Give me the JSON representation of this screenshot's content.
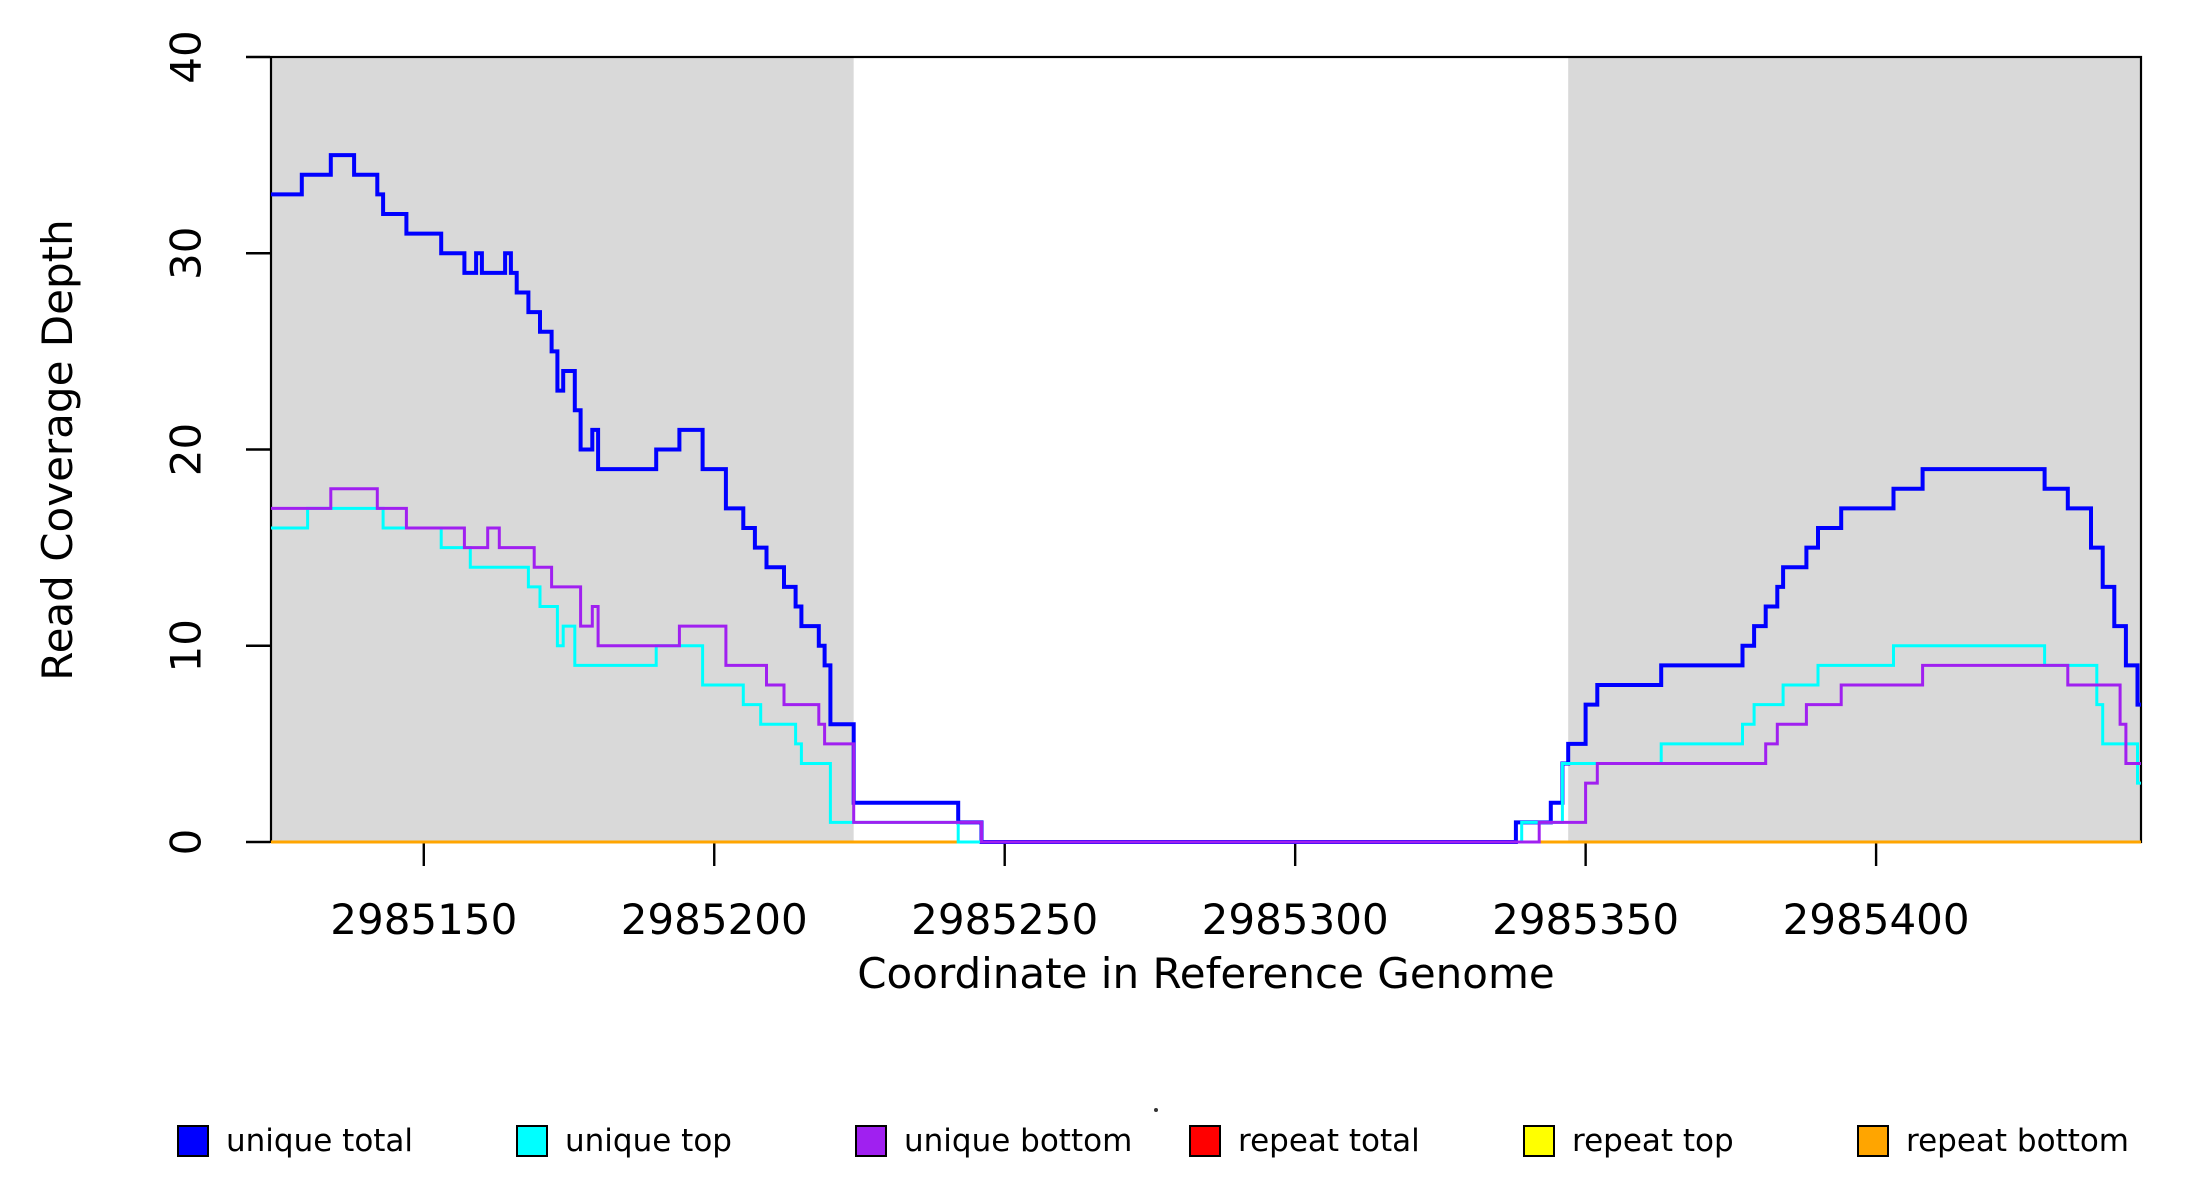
{
  "figure": {
    "background": "#FFFFFF",
    "text_color": "#000000"
  },
  "chart_data": {
    "type": "line",
    "subtype": "step-coverage-plot",
    "title": "",
    "xlabel": "Coordinate in Reference Genome",
    "ylabel": "Read Coverage Depth",
    "xlim": [
      2985123.7,
      2985445.6
    ],
    "ylim": [
      0,
      40
    ],
    "grid": false,
    "x_ticks": [
      {
        "value": 2985150,
        "label": "2985150"
      },
      {
        "value": 2985200,
        "label": "2985200"
      },
      {
        "value": 2985250,
        "label": "2985250"
      },
      {
        "value": 2985300,
        "label": "2985300"
      },
      {
        "value": 2985350,
        "label": "2985350"
      },
      {
        "value": 2985400,
        "label": "2985400"
      }
    ],
    "y_ticks": [
      {
        "value": 0,
        "label": "0"
      },
      {
        "value": 10,
        "label": "10"
      },
      {
        "value": 20,
        "label": "20"
      },
      {
        "value": 30,
        "label": "30"
      },
      {
        "value": 40,
        "label": "40"
      }
    ],
    "shaded_regions": [
      {
        "x0": 2985123.7,
        "x1": 2985224,
        "color": "#D9D9D9"
      },
      {
        "x0": 2985347,
        "x1": 2985445.6,
        "color": "#D9D9D9"
      }
    ],
    "series": [
      {
        "name": "repeat total",
        "color": "#FF0000",
        "width": 2,
        "points": [
          [
            2985123.7,
            0
          ]
        ]
      },
      {
        "name": "repeat top",
        "color": "#FFFF00",
        "width": 2,
        "points": [
          [
            2985123.7,
            0
          ]
        ]
      },
      {
        "name": "repeat bottom",
        "color": "#FFA500",
        "width": 3,
        "points": [
          [
            2985123.7,
            0
          ]
        ]
      },
      {
        "name": "unique total",
        "color": "#0000FF",
        "width": 4,
        "points": [
          [
            2985123.7,
            33
          ],
          [
            2985129,
            34
          ],
          [
            2985134,
            35
          ],
          [
            2985138,
            34
          ],
          [
            2985142,
            33
          ],
          [
            2985143,
            32
          ],
          [
            2985147,
            31
          ],
          [
            2985153,
            30
          ],
          [
            2985157,
            29
          ],
          [
            2985159,
            30
          ],
          [
            2985160,
            29
          ],
          [
            2985164,
            30
          ],
          [
            2985165,
            29
          ],
          [
            2985166,
            28
          ],
          [
            2985168,
            27
          ],
          [
            2985170,
            26
          ],
          [
            2985172,
            25
          ],
          [
            2985173,
            23
          ],
          [
            2985174,
            24
          ],
          [
            2985176,
            22
          ],
          [
            2985177,
            20
          ],
          [
            2985179,
            21
          ],
          [
            2985180,
            19
          ],
          [
            2985190,
            20
          ],
          [
            2985194,
            21
          ],
          [
            2985198,
            19
          ],
          [
            2985202,
            17
          ],
          [
            2985205,
            16
          ],
          [
            2985207,
            15
          ],
          [
            2985209,
            14
          ],
          [
            2985212,
            13
          ],
          [
            2985214,
            12
          ],
          [
            2985215,
            11
          ],
          [
            2985218,
            10
          ],
          [
            2985219,
            9
          ],
          [
            2985220,
            6
          ],
          [
            2985224,
            2
          ],
          [
            2985242,
            1
          ],
          [
            2985246,
            0
          ],
          [
            2985338,
            1
          ],
          [
            2985344,
            2
          ],
          [
            2985346,
            4
          ],
          [
            2985347,
            5
          ],
          [
            2985350,
            7
          ],
          [
            2985352,
            8
          ],
          [
            2985363,
            9
          ],
          [
            2985377,
            10
          ],
          [
            2985379,
            11
          ],
          [
            2985381,
            12
          ],
          [
            2985383,
            13
          ],
          [
            2985384,
            14
          ],
          [
            2985388,
            15
          ],
          [
            2985390,
            16
          ],
          [
            2985394,
            17
          ],
          [
            2985403,
            18
          ],
          [
            2985408,
            19
          ],
          [
            2985429,
            18
          ],
          [
            2985433,
            17
          ],
          [
            2985437,
            15
          ],
          [
            2985439,
            13
          ],
          [
            2985441,
            11
          ],
          [
            2985443,
            9
          ],
          [
            2985445,
            7
          ]
        ]
      },
      {
        "name": "unique top",
        "color": "#00FFFF",
        "width": 3,
        "points": [
          [
            2985123.7,
            16
          ],
          [
            2985130,
            17
          ],
          [
            2985143,
            16
          ],
          [
            2985153,
            15
          ],
          [
            2985158,
            14
          ],
          [
            2985168,
            13
          ],
          [
            2985170,
            12
          ],
          [
            2985173,
            10
          ],
          [
            2985174,
            11
          ],
          [
            2985176,
            9
          ],
          [
            2985190,
            10
          ],
          [
            2985198,
            8
          ],
          [
            2985205,
            7
          ],
          [
            2985208,
            6
          ],
          [
            2985214,
            5
          ],
          [
            2985215,
            4
          ],
          [
            2985220,
            1
          ],
          [
            2985242,
            0
          ],
          [
            2985339,
            1
          ],
          [
            2985346,
            4
          ],
          [
            2985363,
            5
          ],
          [
            2985377,
            6
          ],
          [
            2985379,
            7
          ],
          [
            2985384,
            8
          ],
          [
            2985390,
            9
          ],
          [
            2985403,
            10
          ],
          [
            2985429,
            9
          ],
          [
            2985438,
            7
          ],
          [
            2985439,
            5
          ],
          [
            2985445,
            3
          ]
        ]
      },
      {
        "name": "unique bottom",
        "color": "#A020F0",
        "width": 3,
        "points": [
          [
            2985123.7,
            17
          ],
          [
            2985134,
            18
          ],
          [
            2985142,
            17
          ],
          [
            2985147,
            16
          ],
          [
            2985157,
            15
          ],
          [
            2985161,
            16
          ],
          [
            2985163,
            15
          ],
          [
            2985169,
            14
          ],
          [
            2985172,
            13
          ],
          [
            2985177,
            11
          ],
          [
            2985179,
            12
          ],
          [
            2985180,
            10
          ],
          [
            2985194,
            11
          ],
          [
            2985202,
            9
          ],
          [
            2985209,
            8
          ],
          [
            2985212,
            7
          ],
          [
            2985218,
            6
          ],
          [
            2985219,
            5
          ],
          [
            2985224,
            1
          ],
          [
            2985246,
            0
          ],
          [
            2985342,
            1
          ],
          [
            2985350,
            3
          ],
          [
            2985352,
            4
          ],
          [
            2985381,
            5
          ],
          [
            2985383,
            6
          ],
          [
            2985388,
            7
          ],
          [
            2985394,
            8
          ],
          [
            2985408,
            9
          ],
          [
            2985433,
            8
          ],
          [
            2985442,
            6
          ],
          [
            2985443,
            4
          ]
        ]
      }
    ]
  },
  "legend": {
    "items": [
      {
        "label": "unique total",
        "color": "#0000FF"
      },
      {
        "label": "unique top",
        "color": "#00FFFF"
      },
      {
        "label": "unique bottom",
        "color": "#A020F0"
      },
      {
        "label": "repeat total",
        "color": "#FF0000"
      },
      {
        "label": "repeat top",
        "color": "#FFFF00"
      },
      {
        "label": "repeat bottom",
        "color": "#FFA500"
      }
    ]
  }
}
